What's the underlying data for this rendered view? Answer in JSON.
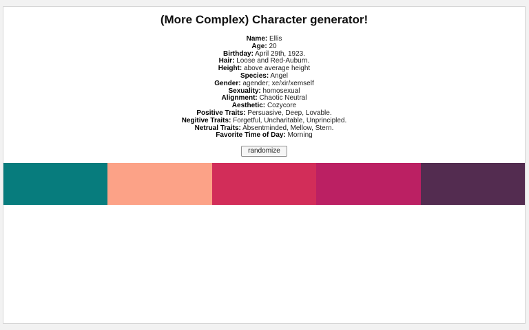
{
  "page": {
    "title": "(More Complex) Character generator!"
  },
  "character": {
    "fields": [
      {
        "label": "Name:",
        "value": "Ellis"
      },
      {
        "label": "Age:",
        "value": "20"
      },
      {
        "label": "Birthday:",
        "value": "April 29th, 1923."
      },
      {
        "label": "Hair:",
        "value": "Loose and Red-Auburn."
      },
      {
        "label": "Height:",
        "value": "above average height"
      },
      {
        "label": "Species:",
        "value": "Angel"
      },
      {
        "label": "Gender:",
        "value": "agender; xe/xir/xemself"
      },
      {
        "label": "Sexuality:",
        "value": "homosexual"
      },
      {
        "label": "Alignment:",
        "value": "Chaotic Neutral"
      },
      {
        "label": "Aesthetic:",
        "value": "Cozycore"
      },
      {
        "label": "Positive Traits:",
        "value": "Persuasive, Deep, Lovable."
      },
      {
        "label": "Negitive Traits:",
        "value": "Forgetful, Uncharitable, Unprincipled."
      },
      {
        "label": "Netrual Traits:",
        "value": "Absentminded, Mellow, Stern."
      },
      {
        "label": "Favorite Time of Day:",
        "value": "Morning"
      }
    ]
  },
  "controls": {
    "randomize_label": "randomize"
  },
  "palette": {
    "colors": [
      "#077c7d",
      "#fca287",
      "#d22d59",
      "#bb2063",
      "#532c50"
    ]
  }
}
